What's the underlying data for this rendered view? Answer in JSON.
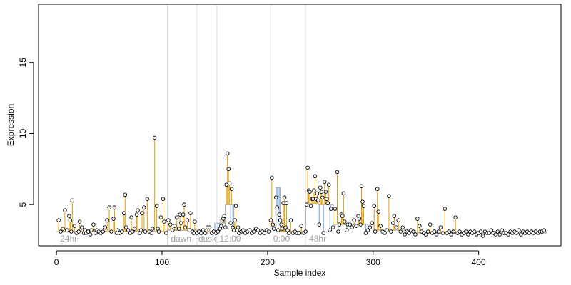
{
  "chart_data": {
    "type": "scatter",
    "title": "",
    "xlabel": "Sample index",
    "ylabel": "Expression",
    "xlim": [
      -17,
      478
    ],
    "ylim": [
      2.1,
      19.1
    ],
    "x_ticks": [
      0,
      100,
      200,
      300,
      400
    ],
    "y_ticks": [
      5,
      10,
      15
    ],
    "grid": false,
    "colors": {
      "stem": "#e69f00",
      "baseline": "#7ea6e0",
      "baseline_pale": "#c6d9f1",
      "step": "#b0b0b0",
      "divider": "#dcdcdc",
      "point_fill": "#ffffff",
      "point_stroke": "#000000",
      "region_label": "#a0a0a0"
    },
    "region_dividers": [
      105,
      133,
      152,
      203,
      236
    ],
    "region_labels": [
      {
        "x": 2,
        "text": "24hr"
      },
      {
        "x": 107,
        "text": "dawn"
      },
      {
        "x": 133,
        "text": "dusk"
      },
      {
        "x": 153,
        "text": "12:00"
      },
      {
        "x": 204,
        "text": "0:00"
      },
      {
        "x": 238,
        "text": "48hr"
      }
    ],
    "step_segments": [
      {
        "x": [
          0,
          105
        ],
        "y": 3.1
      },
      {
        "x": [
          105,
          133
        ],
        "y": 3.2
      },
      {
        "x": [
          133,
          150
        ],
        "y": 3.1
      },
      {
        "x": [
          150,
          160
        ],
        "y": 3.7
      },
      {
        "x": [
          160,
          168
        ],
        "y": 5.0
      },
      {
        "x": [
          168,
          203
        ],
        "y": 3.1
      },
      {
        "x": [
          203,
          208
        ],
        "y": 3.5
      },
      {
        "x": [
          208,
          212
        ],
        "y": 6.2
      },
      {
        "x": [
          212,
          236
        ],
        "y": 3.1
      },
      {
        "x": [
          236,
          248
        ],
        "y": 5.1
      },
      {
        "x": [
          248,
          262
        ],
        "y": 5.0
      },
      {
        "x": [
          262,
          300
        ],
        "y": 3.6
      },
      {
        "x": [
          300,
          340
        ],
        "y": 3.2
      },
      {
        "x": [
          340,
          465
        ],
        "y": 3.0
      }
    ],
    "series": [
      {
        "name": "",
        "points": [
          [
            2,
            3.9
          ],
          [
            4,
            3.1
          ],
          [
            6,
            3.3
          ],
          [
            8,
            4.6
          ],
          [
            10,
            3.2
          ],
          [
            12,
            4.2
          ],
          [
            13,
            3.9
          ],
          [
            14,
            3.1
          ],
          [
            15,
            5.3
          ],
          [
            17,
            3.5
          ],
          [
            19,
            3.0
          ],
          [
            21,
            3.1
          ],
          [
            22,
            3.8
          ],
          [
            24,
            3.4
          ],
          [
            26,
            3.0
          ],
          [
            27,
            3.2
          ],
          [
            28,
            3.0
          ],
          [
            30,
            3.1
          ],
          [
            32,
            2.9
          ],
          [
            33,
            3.2
          ],
          [
            35,
            3.6
          ],
          [
            37,
            3.0
          ],
          [
            38,
            3.2
          ],
          [
            40,
            3.1
          ],
          [
            42,
            3.0
          ],
          [
            44,
            3.1
          ],
          [
            46,
            3.4
          ],
          [
            48,
            3.9
          ],
          [
            50,
            4.8
          ],
          [
            52,
            3.1
          ],
          [
            54,
            4.0
          ],
          [
            55,
            4.8
          ],
          [
            57,
            3.0
          ],
          [
            58,
            3.2
          ],
          [
            60,
            3.0
          ],
          [
            62,
            3.1
          ],
          [
            64,
            4.4
          ],
          [
            65,
            5.7
          ],
          [
            66,
            3.4
          ],
          [
            68,
            3.2
          ],
          [
            70,
            3.0
          ],
          [
            71,
            4.1
          ],
          [
            72,
            3.1
          ],
          [
            74,
            3.3
          ],
          [
            76,
            4.3
          ],
          [
            77,
            4.6
          ],
          [
            79,
            3.0
          ],
          [
            80,
            3.2
          ],
          [
            81,
            4.4
          ],
          [
            83,
            4.8
          ],
          [
            84,
            3.1
          ],
          [
            86,
            5.4
          ],
          [
            88,
            3.1
          ],
          [
            90,
            3.0
          ],
          [
            91,
            3.3
          ],
          [
            93,
            9.7
          ],
          [
            95,
            4.9
          ],
          [
            96,
            3.3
          ],
          [
            97,
            3.1
          ],
          [
            99,
            4.1
          ],
          [
            101,
            5.4
          ],
          [
            102,
            3.8
          ],
          [
            104,
            3.0
          ],
          [
            106,
            3.9
          ],
          [
            108,
            3.6
          ],
          [
            110,
            3.2
          ],
          [
            112,
            3.5
          ],
          [
            114,
            4.1
          ],
          [
            116,
            3.3
          ],
          [
            117,
            4.3
          ],
          [
            118,
            3.7
          ],
          [
            120,
            4.3
          ],
          [
            121,
            5.0
          ],
          [
            122,
            3.4
          ],
          [
            124,
            3.9
          ],
          [
            126,
            3.2
          ],
          [
            127,
            4.4
          ],
          [
            129,
            3.1
          ],
          [
            130,
            3.0
          ],
          [
            131,
            3.8
          ],
          [
            133,
            3.0
          ],
          [
            135,
            3.1
          ],
          [
            137,
            3.0
          ],
          [
            139,
            3.2
          ],
          [
            141,
            3.0
          ],
          [
            143,
            3.4
          ],
          [
            145,
            3.4
          ],
          [
            147,
            3.0
          ],
          [
            149,
            3.1
          ],
          [
            151,
            3.0
          ],
          [
            153,
            3.1
          ],
          [
            155,
            3.3
          ],
          [
            156,
            3.5
          ],
          [
            157,
            3.9
          ],
          [
            158,
            4.0
          ],
          [
            159,
            4.2
          ],
          [
            160,
            3.4
          ],
          [
            161,
            6.4
          ],
          [
            162,
            8.6
          ],
          [
            163,
            7.5
          ],
          [
            164,
            6.5
          ],
          [
            165,
            3.7
          ],
          [
            166,
            6.1
          ],
          [
            167,
            3.4
          ],
          [
            168,
            3.2
          ],
          [
            169,
            3.9
          ],
          [
            170,
            4.9
          ],
          [
            171,
            3.2
          ],
          [
            172,
            3.4
          ],
          [
            173,
            3.0
          ],
          [
            175,
            3.1
          ],
          [
            177,
            3.2
          ],
          [
            179,
            3.0
          ],
          [
            181,
            3.1
          ],
          [
            183,
            3.2
          ],
          [
            185,
            3.0
          ],
          [
            187,
            3.1
          ],
          [
            189,
            3.3
          ],
          [
            191,
            3.2
          ],
          [
            193,
            3.0
          ],
          [
            195,
            3.1
          ],
          [
            197,
            3.0
          ],
          [
            199,
            3.2
          ],
          [
            201,
            3.1
          ],
          [
            203,
            3.9
          ],
          [
            204,
            6.9
          ],
          [
            205,
            3.6
          ],
          [
            206,
            3.3
          ],
          [
            208,
            5.5
          ],
          [
            209,
            4.8
          ],
          [
            210,
            3.2
          ],
          [
            211,
            4.3
          ],
          [
            212,
            3.9
          ],
          [
            213,
            3.6
          ],
          [
            214,
            3.3
          ],
          [
            215,
            5.1
          ],
          [
            216,
            5.5
          ],
          [
            217,
            3.4
          ],
          [
            218,
            5.1
          ],
          [
            219,
            3.2
          ],
          [
            220,
            3.0
          ],
          [
            222,
            3.9
          ],
          [
            224,
            3.0
          ],
          [
            226,
            3.1
          ],
          [
            228,
            3.0
          ],
          [
            230,
            3.0
          ],
          [
            232,
            3.5
          ],
          [
            234,
            3.0
          ],
          [
            236,
            3.1
          ],
          [
            237,
            5.0
          ],
          [
            238,
            7.6
          ],
          [
            239,
            6.0
          ],
          [
            240,
            5.9
          ],
          [
            241,
            4.9
          ],
          [
            242,
            5.4
          ],
          [
            243,
            5.4
          ],
          [
            244,
            6.0
          ],
          [
            245,
            7.0
          ],
          [
            246,
            5.4
          ],
          [
            247,
            5.8
          ],
          [
            248,
            5.3
          ],
          [
            249,
            3.6
          ],
          [
            250,
            6.2
          ],
          [
            251,
            5.9
          ],
          [
            252,
            5.5
          ],
          [
            253,
            3.0
          ],
          [
            254,
            6.6
          ],
          [
            255,
            5.9
          ],
          [
            256,
            5.4
          ],
          [
            257,
            5.1
          ],
          [
            258,
            6.4
          ],
          [
            259,
            3.2
          ],
          [
            260,
            4.7
          ],
          [
            262,
            3.4
          ],
          [
            264,
            4.7
          ],
          [
            266,
            7.3
          ],
          [
            267,
            3.1
          ],
          [
            268,
            3.6
          ],
          [
            270,
            4.3
          ],
          [
            271,
            4.2
          ],
          [
            272,
            5.8
          ],
          [
            273,
            3.8
          ],
          [
            275,
            3.2
          ],
          [
            276,
            3.6
          ],
          [
            278,
            3.6
          ],
          [
            280,
            3.4
          ],
          [
            282,
            3.9
          ],
          [
            284,
            3.5
          ],
          [
            286,
            4.2
          ],
          [
            287,
            4.0
          ],
          [
            288,
            3.6
          ],
          [
            289,
            6.3
          ],
          [
            290,
            5.2
          ],
          [
            291,
            4.9
          ],
          [
            293,
            3.0
          ],
          [
            295,
            3.2
          ],
          [
            297,
            3.4
          ],
          [
            299,
            3.7
          ],
          [
            301,
            4.9
          ],
          [
            302,
            3.1
          ],
          [
            304,
            6.1
          ],
          [
            305,
            4.5
          ],
          [
            307,
            3.5
          ],
          [
            309,
            3.1
          ],
          [
            311,
            3.0
          ],
          [
            313,
            3.2
          ],
          [
            315,
            5.6
          ],
          [
            317,
            3.1
          ],
          [
            319,
            3.7
          ],
          [
            320,
            4.2
          ],
          [
            322,
            3.4
          ],
          [
            324,
            3.9
          ],
          [
            326,
            3.1
          ],
          [
            328,
            3.4
          ],
          [
            330,
            2.9
          ],
          [
            332,
            3.1
          ],
          [
            334,
            3.0
          ],
          [
            336,
            3.2
          ],
          [
            338,
            3.1
          ],
          [
            340,
            2.9
          ],
          [
            342,
            4.0
          ],
          [
            344,
            3.5
          ],
          [
            346,
            3.1
          ],
          [
            348,
            3.0
          ],
          [
            350,
            2.9
          ],
          [
            352,
            3.1
          ],
          [
            354,
            3.6
          ],
          [
            356,
            3.0
          ],
          [
            358,
            3.1
          ],
          [
            360,
            2.9
          ],
          [
            362,
            3.1
          ],
          [
            364,
            3.4
          ],
          [
            366,
            3.0
          ],
          [
            368,
            4.7
          ],
          [
            370,
            3.0
          ],
          [
            372,
            3.1
          ],
          [
            374,
            2.9
          ],
          [
            376,
            3.1
          ],
          [
            378,
            4.1
          ],
          [
            380,
            3.0
          ],
          [
            382,
            3.1
          ],
          [
            384,
            2.9
          ],
          [
            386,
            3.0
          ],
          [
            388,
            3.1
          ],
          [
            390,
            2.9
          ],
          [
            392,
            3.1
          ],
          [
            394,
            3.0
          ],
          [
            396,
            3.1
          ],
          [
            398,
            2.9
          ],
          [
            400,
            3.0
          ],
          [
            402,
            3.1
          ],
          [
            404,
            2.8
          ],
          [
            406,
            3.1
          ],
          [
            408,
            3.0
          ],
          [
            410,
            3.0
          ],
          [
            412,
            3.2
          ],
          [
            414,
            3.0
          ],
          [
            416,
            2.9
          ],
          [
            418,
            3.1
          ],
          [
            420,
            2.9
          ],
          [
            422,
            3.2
          ],
          [
            424,
            3.0
          ],
          [
            426,
            3.0
          ],
          [
            428,
            2.9
          ],
          [
            430,
            3.1
          ],
          [
            432,
            3.0
          ],
          [
            434,
            3.1
          ],
          [
            436,
            3.0
          ],
          [
            438,
            3.2
          ],
          [
            440,
            2.9
          ],
          [
            442,
            3.1
          ],
          [
            444,
            3.0
          ],
          [
            446,
            3.1
          ],
          [
            448,
            3.0
          ],
          [
            450,
            3.1
          ],
          [
            452,
            3.0
          ],
          [
            454,
            3.1
          ],
          [
            456,
            3.0
          ],
          [
            458,
            3.1
          ],
          [
            460,
            3.1
          ],
          [
            462,
            3.2
          ]
        ]
      }
    ]
  }
}
